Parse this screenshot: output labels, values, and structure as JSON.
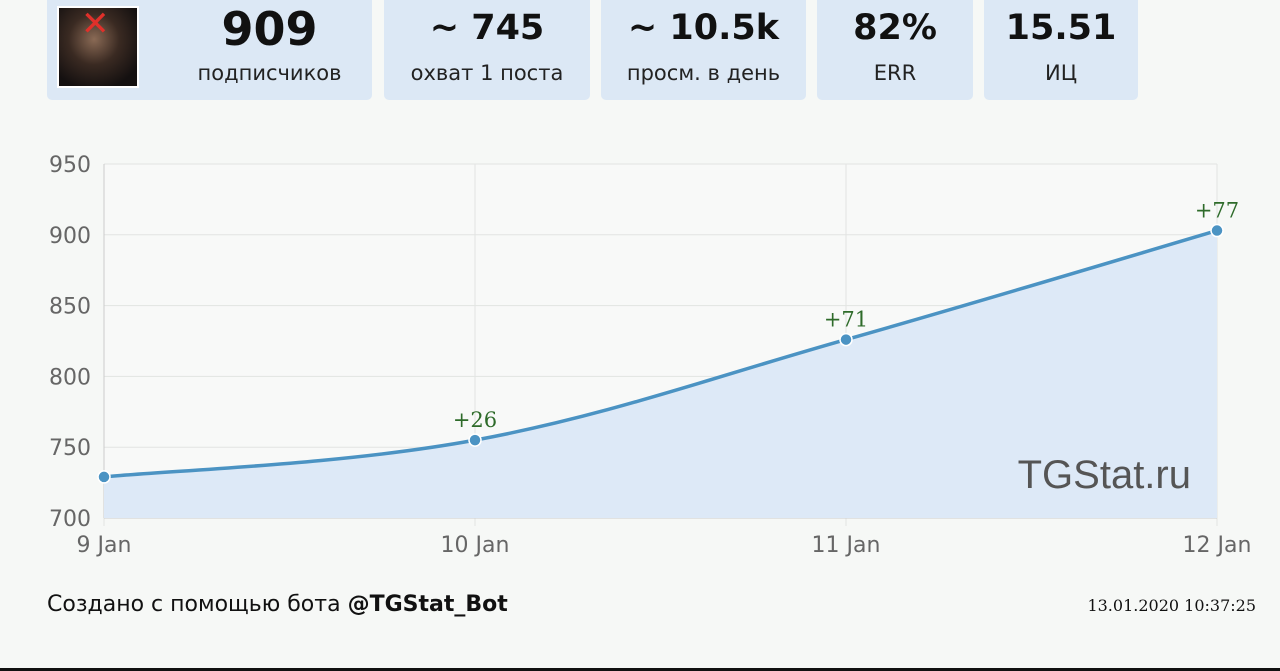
{
  "stats": {
    "subscribers": {
      "value": "909",
      "label": "подписчиков"
    },
    "reach": {
      "value": "~ 745",
      "label": "охват 1 поста"
    },
    "views": {
      "value": "~ 10.5k",
      "label": "просм. в день"
    },
    "err": {
      "value": "82%",
      "label": "ERR"
    },
    "ic": {
      "value": "15.51",
      "label": "ИЦ"
    }
  },
  "avatar": {
    "icon": "channel-avatar"
  },
  "chart_data": {
    "type": "area",
    "categories": [
      "9 Jan",
      "10 Jan",
      "11 Jan",
      "12 Jan"
    ],
    "values": [
      729,
      755,
      826,
      903
    ],
    "annotations": [
      "",
      "+26",
      "+71",
      "+77"
    ],
    "yticks": [
      700,
      750,
      800,
      850,
      900,
      950
    ],
    "ylim": [
      700,
      950
    ],
    "watermark": "TGStat.ru",
    "colors": {
      "line": "#4b93c3",
      "fill": "#dde9f7",
      "annotation": "#2e6b2a",
      "grid": "#e2e4e2"
    }
  },
  "footer": {
    "prefix": "Создано с помощью бота ",
    "bot": "@TGStat_Bot",
    "timestamp": "13.01.2020 10:37:25"
  }
}
